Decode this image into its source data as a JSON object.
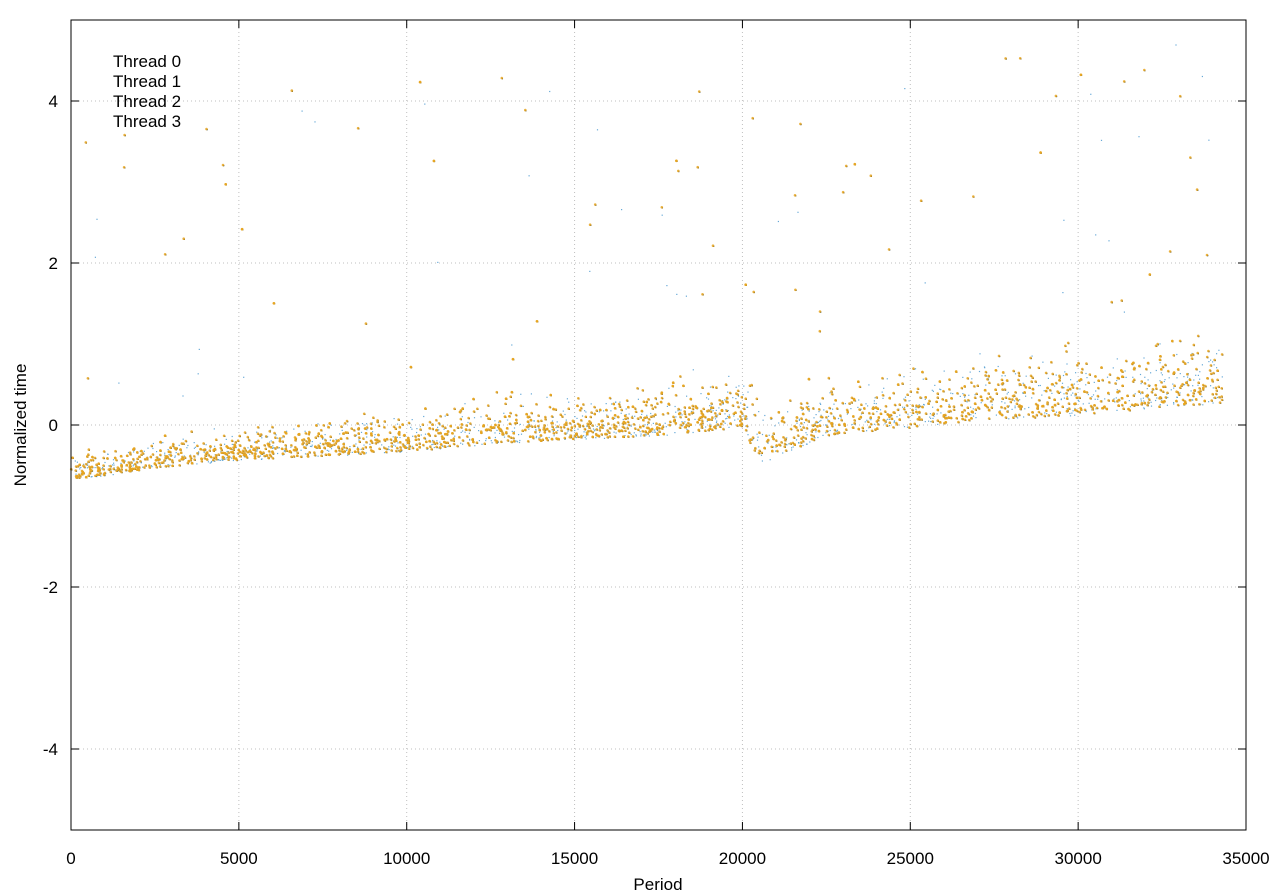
{
  "chart_data": {
    "type": "scatter",
    "xlabel": "Period",
    "ylabel": "Normalized time",
    "xlim": [
      0,
      35000
    ],
    "ylim": [
      -5,
      5
    ],
    "x_ticks": [
      0,
      5000,
      10000,
      15000,
      20000,
      25000,
      30000,
      35000
    ],
    "y_ticks": [
      -4,
      -2,
      0,
      2,
      4
    ],
    "grid": true,
    "legend_position": "top-left",
    "series": [
      {
        "name": "Thread 0",
        "color": "#1a1a1a",
        "marker": "dot"
      },
      {
        "name": "Thread 1",
        "color": "#56a0d3",
        "marker": "dot"
      },
      {
        "name": "Thread 2",
        "color": "#6aa9c4",
        "marker": "dot"
      },
      {
        "name": "Thread 3",
        "color": "#e6a520",
        "marker": "x"
      }
    ],
    "trend": {
      "x": [
        0,
        2500,
        5000,
        7500,
        10000,
        12500,
        15000,
        17500,
        20000,
        20500,
        22500,
        25000,
        27500,
        30000,
        32500,
        34300
      ],
      "y": [
        -0.6,
        -0.45,
        -0.35,
        -0.3,
        -0.25,
        -0.15,
        -0.1,
        -0.05,
        0.05,
        -0.4,
        -0.05,
        0.05,
        0.15,
        0.2,
        0.3,
        0.35
      ]
    }
  }
}
